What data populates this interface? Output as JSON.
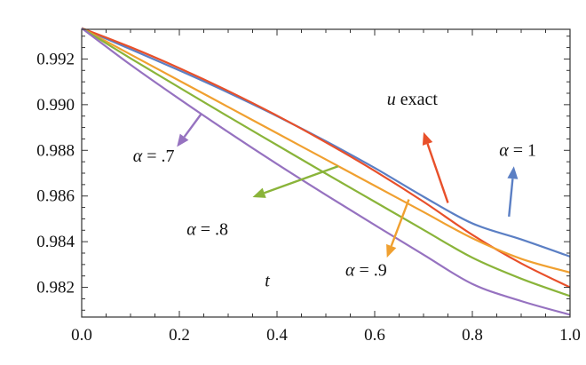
{
  "chart_data": {
    "type": "line",
    "title": "",
    "xlabel": "t",
    "ylabel": "",
    "xlim": [
      0,
      1
    ],
    "ylim": [
      0.9807,
      0.9933
    ],
    "grid": false,
    "legend": "none",
    "x_ticks": [
      0.0,
      0.2,
      0.4,
      0.6,
      0.8,
      1.0
    ],
    "x_tick_labels": [
      "0.0",
      "0.2",
      "0.4",
      "0.6",
      "0.8",
      "1.0"
    ],
    "y_ticks": [
      0.982,
      0.984,
      0.986,
      0.988,
      0.99,
      0.992
    ],
    "y_tick_labels": [
      "0.982",
      "0.984",
      "0.986",
      "0.988",
      "0.990",
      "0.992"
    ],
    "series": [
      {
        "key": "alpha1",
        "color": "#5b7fc4",
        "x": [
          0,
          0.1,
          0.2,
          0.3,
          0.4,
          0.5,
          0.6,
          0.7,
          0.8,
          0.9,
          1.0
        ],
        "y": [
          0.99335,
          0.99243,
          0.9915,
          0.99053,
          0.9895,
          0.9884,
          0.98723,
          0.98597,
          0.9848,
          0.9841,
          0.98335
        ]
      },
      {
        "key": "uexact",
        "color": "#e8502a",
        "x": [
          0,
          0.1,
          0.2,
          0.3,
          0.4,
          0.5,
          0.6,
          0.7,
          0.8,
          0.9,
          1.0
        ],
        "y": [
          0.99335,
          0.99252,
          0.9916,
          0.9906,
          0.98952,
          0.98835,
          0.9871,
          0.98575,
          0.9843,
          0.98305,
          0.982
        ]
      },
      {
        "key": "alpha09",
        "color": "#f0a030",
        "x": [
          0,
          0.1,
          0.2,
          0.3,
          0.4,
          0.5,
          0.6,
          0.7,
          0.8,
          0.9,
          1.0
        ],
        "y": [
          0.99335,
          0.9922,
          0.99105,
          0.9899,
          0.98875,
          0.9876,
          0.98645,
          0.9853,
          0.98415,
          0.98325,
          0.98265
        ]
      },
      {
        "key": "alpha08",
        "color": "#8ab43a",
        "x": [
          0,
          0.1,
          0.2,
          0.3,
          0.4,
          0.5,
          0.6,
          0.7,
          0.8,
          0.9,
          1.0
        ],
        "y": [
          0.99335,
          0.99203,
          0.99075,
          0.98948,
          0.98823,
          0.98698,
          0.98575,
          0.98452,
          0.9833,
          0.98238,
          0.98162
        ]
      },
      {
        "key": "alpha07",
        "color": "#9672c0",
        "x": [
          0,
          0.1,
          0.2,
          0.3,
          0.4,
          0.5,
          0.6,
          0.7,
          0.8,
          0.9,
          1.0
        ],
        "y": [
          0.99335,
          0.99175,
          0.99025,
          0.9888,
          0.9874,
          0.98605,
          0.98473,
          0.98343,
          0.98215,
          0.9814,
          0.9808
        ]
      }
    ],
    "annotations": [
      {
        "key": "alpha1",
        "prefix": "α",
        "suffix": " = 1",
        "color": "#5b7fc4",
        "text_at": [
          0.855,
          0.98775
        ],
        "arrow_from": [
          0.875,
          0.9851
        ],
        "arrow_to": [
          0.885,
          0.9873
        ]
      },
      {
        "key": "uexact",
        "prefix": "u",
        "suffix": " exact",
        "color": "#e8502a",
        "text_at": [
          0.625,
          0.99
        ],
        "arrow_from": [
          0.75,
          0.9857
        ],
        "arrow_to": [
          0.7,
          0.9888
        ]
      },
      {
        "key": "alpha09",
        "prefix": "α",
        "suffix": " = .9",
        "color": "#f0a030",
        "text_at": [
          0.54,
          0.9825
        ],
        "arrow_from": [
          0.67,
          0.98585
        ],
        "arrow_to": [
          0.625,
          0.9833
        ]
      },
      {
        "key": "alpha08",
        "prefix": "α",
        "suffix": " = .8",
        "color": "#8ab43a",
        "text_at": [
          0.215,
          0.9843
        ],
        "arrow_from": [
          0.525,
          0.9873
        ],
        "arrow_to": [
          0.35,
          0.98595
        ]
      },
      {
        "key": "alpha07",
        "prefix": "α",
        "suffix": " = .7",
        "color": "#9672c0",
        "text_at": [
          0.105,
          0.9875
        ],
        "arrow_from": [
          0.245,
          0.9896
        ],
        "arrow_to": [
          0.195,
          0.98815
        ]
      }
    ]
  }
}
